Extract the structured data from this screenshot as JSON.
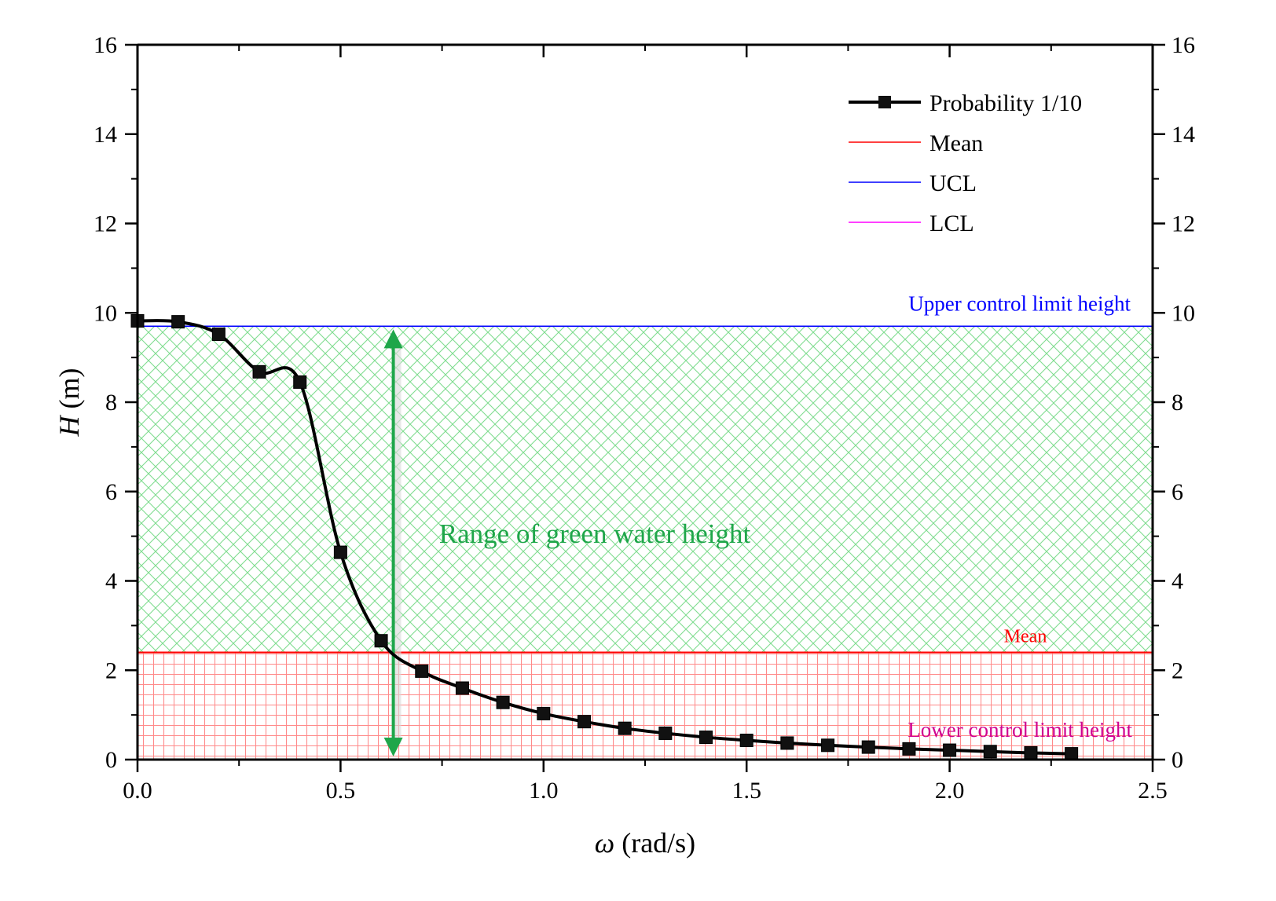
{
  "chart_data": {
    "type": "line",
    "xlabel_symbol": "ω",
    "xlabel_unit": " (rad/s)",
    "ylabel_symbol": "H",
    "ylabel_unit": " (m)",
    "xlim": [
      0,
      2.5
    ],
    "ylim": [
      0,
      16
    ],
    "xticks": [
      0.0,
      0.5,
      1.0,
      1.5,
      2.0,
      2.5
    ],
    "xtick_labels": [
      "0.0",
      "0.5",
      "1.0",
      "1.5",
      "2.0",
      "2.5"
    ],
    "yticks": [
      0,
      2,
      4,
      6,
      8,
      10,
      12,
      14,
      16
    ],
    "ytick_labels": [
      "0",
      "2",
      "4",
      "6",
      "8",
      "10",
      "12",
      "14",
      "16"
    ],
    "mirror_right_axis": true,
    "series": [
      {
        "name": "Probability 1/10",
        "color": "#000000",
        "marker": "square",
        "x": [
          0.0,
          0.1,
          0.2,
          0.3,
          0.4,
          0.5,
          0.6,
          0.7,
          0.8,
          0.9,
          1.0,
          1.1,
          1.2,
          1.3,
          1.4,
          1.5,
          1.6,
          1.7,
          1.8,
          1.9,
          2.0,
          2.1,
          2.2,
          2.3
        ],
        "y": [
          9.82,
          9.8,
          9.52,
          8.68,
          8.45,
          4.64,
          2.66,
          1.98,
          1.6,
          1.28,
          1.03,
          0.85,
          0.7,
          0.59,
          0.5,
          0.43,
          0.37,
          0.32,
          0.28,
          0.24,
          0.21,
          0.18,
          0.15,
          0.13
        ]
      }
    ],
    "reference_lines": [
      {
        "name": "Mean",
        "value": 2.4,
        "color": "#ff0000",
        "annotation": "Mean"
      },
      {
        "name": "UCL",
        "value": 9.7,
        "color": "#0000ff",
        "annotation": "Upper control limit height"
      },
      {
        "name": "LCL",
        "value": 0.0,
        "color": "#ff00ff",
        "annotation": "Lower control limit height"
      }
    ],
    "range_annotation": {
      "text": "Range of green water height",
      "x": 0.63,
      "y_from": 0.0,
      "y_to": 9.7,
      "color": "#1fa64a"
    },
    "shaded_regions": [
      {
        "from": 2.4,
        "to": 9.7,
        "pattern": "crosshatch-diagonal",
        "color": "#7fdc8f"
      },
      {
        "from": 0.0,
        "to": 2.4,
        "pattern": "grid",
        "color": "#ff8a8a"
      }
    ],
    "legend_position": "top-right",
    "grid": false
  }
}
